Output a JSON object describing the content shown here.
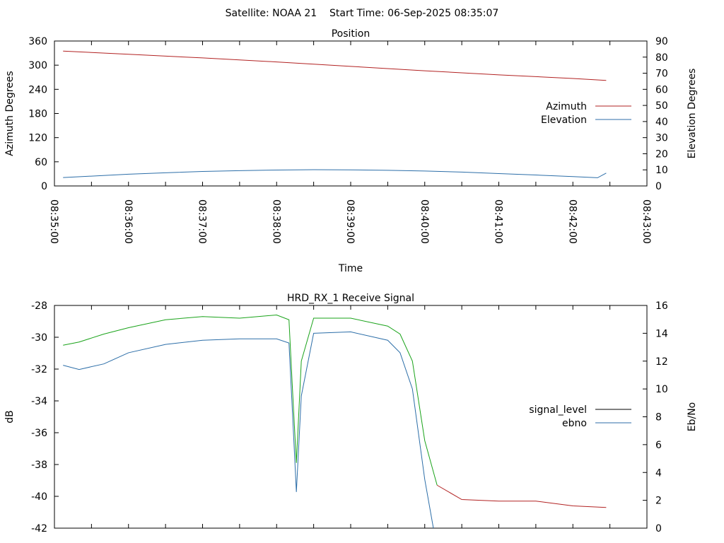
{
  "header": {
    "title": "Satellite: NOAA 21    Start Time: 06-Sep-2025 08:35:07"
  },
  "chart_data": [
    {
      "type": "line",
      "title": "Position",
      "xlabel": "Time",
      "ylabel": "Azimuth Degrees",
      "y2label": "Elevation Degrees",
      "xlim": [
        "08:35:00",
        "08:43:00"
      ],
      "ylim": [
        0,
        360
      ],
      "y2lim": [
        0,
        90
      ],
      "x_ticks": [
        "08:35:00",
        "08:36:00",
        "08:37:00",
        "08:38:00",
        "08:39:00",
        "08:40:00",
        "08:41:00",
        "08:42:00",
        "08:43:00"
      ],
      "y_ticks": [
        "0",
        "60",
        "120",
        "180",
        "240",
        "300",
        "360"
      ],
      "y2_ticks": [
        "0",
        "10",
        "20",
        "30",
        "40",
        "50",
        "60",
        "70",
        "80",
        "90"
      ],
      "legend_position": "right",
      "series": [
        {
          "name": "Azimuth",
          "axis": "y",
          "color": "#b22222",
          "x": [
            "08:35:07",
            "08:36:00",
            "08:37:00",
            "08:38:00",
            "08:39:00",
            "08:40:00",
            "08:41:00",
            "08:42:00",
            "08:42:27"
          ],
          "values": [
            335,
            327,
            318,
            308,
            297,
            286,
            276,
            267,
            262
          ]
        },
        {
          "name": "Elevation",
          "axis": "y2",
          "color": "#2c6ea8",
          "x": [
            "08:35:07",
            "08:35:30",
            "08:36:00",
            "08:36:30",
            "08:37:00",
            "08:37:30",
            "08:38:00",
            "08:38:30",
            "08:39:00",
            "08:39:30",
            "08:40:00",
            "08:40:30",
            "08:41:00",
            "08:41:30",
            "08:42:00",
            "08:42:20",
            "08:42:27"
          ],
          "values": [
            5.2,
            6.1,
            7.3,
            8.2,
            9.0,
            9.5,
            9.9,
            10.1,
            10.0,
            9.7,
            9.3,
            8.6,
            7.7,
            6.8,
            5.8,
            5.1,
            8.0
          ]
        }
      ]
    },
    {
      "type": "line",
      "title": "HRD_RX_1 Receive Signal",
      "xlabel": "",
      "ylabel": "dB",
      "y2label": "Eb/No",
      "xlim": [
        "08:35:00",
        "08:43:00"
      ],
      "ylim": [
        -42,
        -28
      ],
      "y2lim": [
        0,
        16
      ],
      "y_ticks": [
        "-42",
        "-40",
        "-38",
        "-36",
        "-34",
        "-32",
        "-30",
        "-28"
      ],
      "y2_ticks": [
        "0",
        "2",
        "4",
        "6",
        "8",
        "10",
        "12",
        "14",
        "16"
      ],
      "legend_position": "right",
      "series": [
        {
          "name": "signal_level",
          "axis": "y",
          "legend_color": "#000000",
          "segment_colors": [
            "#1aa31a",
            "#b22222"
          ],
          "x": [
            "08:35:07",
            "08:35:20",
            "08:35:40",
            "08:36:00",
            "08:36:30",
            "08:37:00",
            "08:37:30",
            "08:38:00",
            "08:38:10",
            "08:38:13",
            "08:38:16",
            "08:38:20",
            "08:38:30",
            "08:39:00",
            "08:39:30",
            "08:39:40",
            "08:39:50",
            "08:40:00",
            "08:40:10",
            "08:40:30",
            "08:41:00",
            "08:41:30",
            "08:42:00",
            "08:42:27"
          ],
          "values": [
            -30.5,
            -30.3,
            -29.8,
            -29.4,
            -28.9,
            -28.7,
            -28.8,
            -28.6,
            -28.9,
            -33.5,
            -37.9,
            -31.5,
            -28.8,
            -28.8,
            -29.3,
            -29.8,
            -31.5,
            -36.5,
            -39.3,
            -40.2,
            -40.3,
            -40.3,
            -40.6,
            -40.7
          ],
          "color_switch_at": "08:40:10"
        },
        {
          "name": "ebno",
          "axis": "y2",
          "color": "#2c6ea8",
          "x": [
            "08:35:07",
            "08:35:20",
            "08:35:40",
            "08:36:00",
            "08:36:30",
            "08:37:00",
            "08:37:30",
            "08:38:00",
            "08:38:10",
            "08:38:13",
            "08:38:16",
            "08:38:20",
            "08:38:30",
            "08:39:00",
            "08:39:30",
            "08:39:40",
            "08:39:50",
            "08:40:00",
            "08:40:07"
          ],
          "values": [
            11.7,
            11.4,
            11.8,
            12.6,
            13.2,
            13.5,
            13.6,
            13.6,
            13.3,
            8.0,
            2.6,
            9.5,
            14.0,
            14.1,
            13.5,
            12.6,
            10.0,
            3.5,
            0.0
          ]
        }
      ]
    }
  ]
}
